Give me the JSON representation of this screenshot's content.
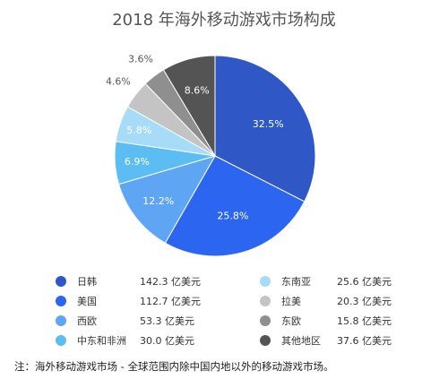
{
  "title": "2018 年海外移动游戏市场构成",
  "note": "注：海外移动游戏市场 - 全球范围内除中国内地以外的移动游戏市场。",
  "legend": [
    {
      "name": "日韩",
      "value": "142.3 亿美元",
      "color": "#2f57c6"
    },
    {
      "name": "美国",
      "value": "112.7 亿美元",
      "color": "#2c66f0"
    },
    {
      "name": "西欧",
      "value": "53.3 亿美元",
      "color": "#5ea5f4"
    },
    {
      "name": "中东和非洲",
      "value": "30.0 亿美元",
      "color": "#5bbdf2"
    },
    {
      "name": "东南亚",
      "value": "25.6 亿美元",
      "color": "#a6dcf8"
    },
    {
      "name": "拉美",
      "value": "20.3 亿美元",
      "color": "#c4c4c4"
    },
    {
      "name": "东欧",
      "value": "15.8 亿美元",
      "color": "#8f8f8f"
    },
    {
      "name": "其他地区",
      "value": "37.6 亿美元",
      "color": "#545454"
    }
  ],
  "chart_data": {
    "type": "pie",
    "title": "2018 年海外移动游戏市场构成",
    "unit": "亿美元",
    "categories": [
      "日韩",
      "美国",
      "西欧",
      "中东和非洲",
      "东南亚",
      "拉美",
      "东欧",
      "其他地区"
    ],
    "values": [
      142.3,
      112.7,
      53.3,
      30.0,
      25.6,
      20.3,
      15.8,
      37.6
    ],
    "percent_labels": [
      "32.5%",
      "25.8%",
      "12.2%",
      "6.9%",
      "5.8%",
      "4.6%",
      "3.6%",
      "8.6%"
    ],
    "colors": [
      "#2f57c6",
      "#2c66f0",
      "#5ea5f4",
      "#5bbdf2",
      "#a6dcf8",
      "#c4c4c4",
      "#8f8f8f",
      "#545454"
    ],
    "legend_position": "bottom"
  }
}
